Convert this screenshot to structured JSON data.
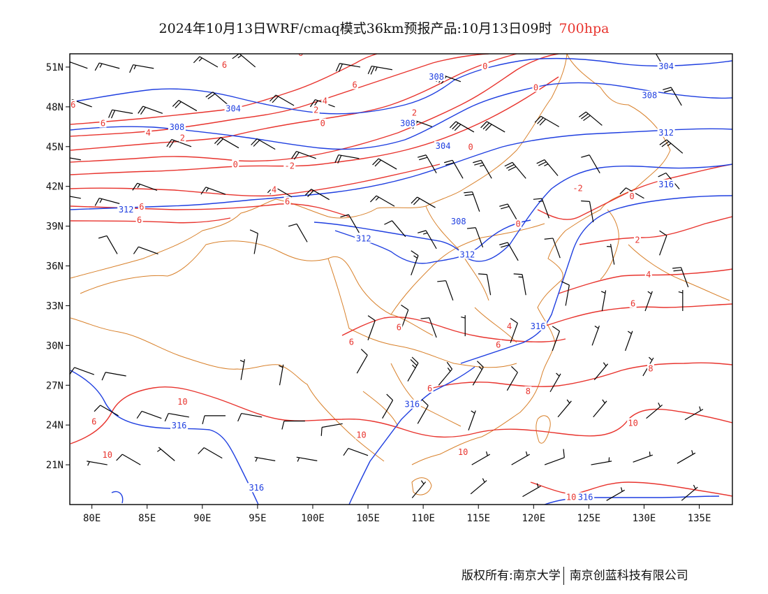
{
  "header": {
    "title": "2024年10月13日WRF/cmaq模式36km预报产品:10月13日09时",
    "level": "700hpa"
  },
  "footer": {
    "copyright": "版权所有:南京大学",
    "company": "南京创蓝科技有限公司"
  },
  "map": {
    "lon_range": [
      78,
      138
    ],
    "lat_range": [
      18,
      52
    ],
    "x_ticks": [
      80,
      85,
      90,
      95,
      100,
      105,
      110,
      115,
      120,
      125,
      130,
      135
    ],
    "x_tick_labels": [
      "80E",
      "85E",
      "90E",
      "95E",
      "100E",
      "105E",
      "110E",
      "115E",
      "120E",
      "125E",
      "130E",
      "135E"
    ],
    "y_ticks": [
      51,
      48,
      45,
      42,
      39,
      36,
      33,
      30,
      27,
      24,
      21
    ],
    "y_tick_labels": [
      "51N",
      "48N",
      "45N",
      "42N",
      "39N",
      "36N",
      "33N",
      "30N",
      "27N",
      "24N",
      "21N"
    ],
    "colors": {
      "temperature": "#e8342e",
      "geopotential": "#1f3fe0",
      "boundary": "#d8802a",
      "wind": "#000000"
    },
    "geopotential_labels": [
      {
        "text": "304",
        "lon": 92.8,
        "lat": 47.8
      },
      {
        "text": "308",
        "lon": 87.7,
        "lat": 46.4
      },
      {
        "text": "312",
        "lon": 83.1,
        "lat": 40.2
      },
      {
        "text": "308",
        "lon": 111.2,
        "lat": 50.2
      },
      {
        "text": "308",
        "lon": 108.6,
        "lat": 46.7
      },
      {
        "text": "304",
        "lon": 111.8,
        "lat": 45.0
      },
      {
        "text": "304",
        "lon": 132.0,
        "lat": 51.0
      },
      {
        "text": "308",
        "lon": 130.5,
        "lat": 48.8
      },
      {
        "text": "312",
        "lon": 132.0,
        "lat": 46.0
      },
      {
        "text": "316",
        "lon": 132.0,
        "lat": 42.1
      },
      {
        "text": "308",
        "lon": 113.2,
        "lat": 39.3
      },
      {
        "text": "312",
        "lon": 104.6,
        "lat": 38.0
      },
      {
        "text": "312",
        "lon": 114.0,
        "lat": 36.8
      },
      {
        "text": "316",
        "lon": 120.4,
        "lat": 31.4
      },
      {
        "text": "316",
        "lon": 109.0,
        "lat": 25.5
      },
      {
        "text": "316",
        "lon": 87.9,
        "lat": 23.9
      },
      {
        "text": "316",
        "lon": 94.9,
        "lat": 19.2
      },
      {
        "text": "316",
        "lon": 124.7,
        "lat": 18.5
      }
    ],
    "temperature_labels": [
      {
        "text": "6",
        "lon": 78.3,
        "lat": 48.1
      },
      {
        "text": "6",
        "lon": 81.0,
        "lat": 46.7
      },
      {
        "text": "4",
        "lon": 85.1,
        "lat": 46.0
      },
      {
        "text": "2",
        "lon": 88.2,
        "lat": 45.6
      },
      {
        "text": "0",
        "lon": 93.0,
        "lat": 43.6
      },
      {
        "text": "-2",
        "lon": 97.9,
        "lat": 43.5
      },
      {
        "text": "6",
        "lon": 92.0,
        "lat": 51.1
      },
      {
        "text": "6",
        "lon": 98.9,
        "lat": 52.0
      },
      {
        "text": "6",
        "lon": 103.8,
        "lat": 49.6
      },
      {
        "text": "4",
        "lon": 101.1,
        "lat": 48.4
      },
      {
        "text": "2",
        "lon": 100.3,
        "lat": 47.7
      },
      {
        "text": "0",
        "lon": 100.9,
        "lat": 46.7
      },
      {
        "text": "2",
        "lon": 109.2,
        "lat": 47.5
      },
      {
        "text": "0",
        "lon": 115.6,
        "lat": 51.0
      },
      {
        "text": "0",
        "lon": 120.2,
        "lat": 49.4
      },
      {
        "text": "0",
        "lon": 114.3,
        "lat": 44.9
      },
      {
        "text": "-2",
        "lon": 124.0,
        "lat": 41.8
      },
      {
        "text": "0",
        "lon": 128.9,
        "lat": 41.2
      },
      {
        "text": "0",
        "lon": 118.6,
        "lat": 39.1
      },
      {
        "text": "2",
        "lon": 129.4,
        "lat": 37.9
      },
      {
        "text": "4",
        "lon": 130.4,
        "lat": 35.3
      },
      {
        "text": "6",
        "lon": 129.0,
        "lat": 33.1
      },
      {
        "text": "4",
        "lon": 96.5,
        "lat": 41.7
      },
      {
        "text": "6",
        "lon": 84.5,
        "lat": 40.4
      },
      {
        "text": "6",
        "lon": 84.3,
        "lat": 39.4
      },
      {
        "text": "6",
        "lon": 97.7,
        "lat": 40.8
      },
      {
        "text": "6",
        "lon": 107.8,
        "lat": 31.3
      },
      {
        "text": "4",
        "lon": 117.8,
        "lat": 31.4
      },
      {
        "text": "6",
        "lon": 116.8,
        "lat": 30.0
      },
      {
        "text": "6",
        "lon": 103.5,
        "lat": 30.2
      },
      {
        "text": "6",
        "lon": 110.6,
        "lat": 26.7
      },
      {
        "text": "8",
        "lon": 119.5,
        "lat": 26.5
      },
      {
        "text": "8",
        "lon": 130.6,
        "lat": 28.2
      },
      {
        "text": "10",
        "lon": 129.0,
        "lat": 24.1
      },
      {
        "text": "10",
        "lon": 113.6,
        "lat": 21.9
      },
      {
        "text": "10",
        "lon": 88.2,
        "lat": 25.7
      },
      {
        "text": "10",
        "lon": 104.4,
        "lat": 23.2
      },
      {
        "text": "6",
        "lon": 80.2,
        "lat": 24.2
      },
      {
        "text": "10",
        "lon": 81.4,
        "lat": 21.7
      },
      {
        "text": "10",
        "lon": 123.4,
        "lat": 18.5
      }
    ],
    "wind_barbs": [
      {
        "lon": 79.6,
        "lat": 50.9,
        "dir": 290,
        "speed": 15
      },
      {
        "lon": 82.5,
        "lat": 50.9,
        "dir": 285,
        "speed": 15
      },
      {
        "lon": 85.6,
        "lat": 50.9,
        "dir": 280,
        "speed": 15
      },
      {
        "lon": 91.4,
        "lat": 51.0,
        "dir": 300,
        "speed": 15
      },
      {
        "lon": 94.8,
        "lat": 51.0,
        "dir": 310,
        "speed": 15
      },
      {
        "lon": 104.3,
        "lat": 51.0,
        "dir": 280,
        "speed": 20
      },
      {
        "lon": 107.2,
        "lat": 50.8,
        "dir": 280,
        "speed": 25
      },
      {
        "lon": 113.4,
        "lat": 49.9,
        "dir": 290,
        "speed": 30
      },
      {
        "lon": 131.5,
        "lat": 51.4,
        "dir": 330,
        "speed": 30
      },
      {
        "lon": 80.0,
        "lat": 48.0,
        "dir": 290,
        "speed": 20
      },
      {
        "lon": 83.7,
        "lat": 47.5,
        "dir": 280,
        "speed": 20
      },
      {
        "lon": 86.4,
        "lat": 47.5,
        "dir": 290,
        "speed": 20
      },
      {
        "lon": 89.5,
        "lat": 47.7,
        "dir": 300,
        "speed": 20
      },
      {
        "lon": 92.4,
        "lat": 48.1,
        "dir": 310,
        "speed": 20
      },
      {
        "lon": 98.3,
        "lat": 48.1,
        "dir": 300,
        "speed": 20
      },
      {
        "lon": 102.0,
        "lat": 48.0,
        "dir": 290,
        "speed": 20
      },
      {
        "lon": 110.8,
        "lat": 46.5,
        "dir": 290,
        "speed": 30
      },
      {
        "lon": 114.6,
        "lat": 46.1,
        "dir": 300,
        "speed": 30
      },
      {
        "lon": 117.4,
        "lat": 46.1,
        "dir": 300,
        "speed": 30
      },
      {
        "lon": 122.3,
        "lat": 46.5,
        "dir": 300,
        "speed": 30
      },
      {
        "lon": 126.2,
        "lat": 46.6,
        "dir": 310,
        "speed": 30
      },
      {
        "lon": 133.4,
        "lat": 48.1,
        "dir": 330,
        "speed": 20
      },
      {
        "lon": 79.0,
        "lat": 44.0,
        "dir": 280,
        "speed": 20
      },
      {
        "lon": 89.0,
        "lat": 45.0,
        "dir": 290,
        "speed": 20
      },
      {
        "lon": 93.3,
        "lat": 44.9,
        "dir": 300,
        "speed": 20
      },
      {
        "lon": 96.6,
        "lat": 44.8,
        "dir": 300,
        "speed": 20
      },
      {
        "lon": 100.3,
        "lat": 44.1,
        "dir": 290,
        "speed": 20
      },
      {
        "lon": 104.2,
        "lat": 44.1,
        "dir": 280,
        "speed": 20
      },
      {
        "lon": 107.6,
        "lat": 43.3,
        "dir": 300,
        "speed": 20
      },
      {
        "lon": 111.2,
        "lat": 43.0,
        "dir": 330,
        "speed": 20
      },
      {
        "lon": 113.6,
        "lat": 42.6,
        "dir": 330,
        "speed": 20
      },
      {
        "lon": 116.2,
        "lat": 42.6,
        "dir": 330,
        "speed": 25
      },
      {
        "lon": 119.3,
        "lat": 42.6,
        "dir": 320,
        "speed": 30
      },
      {
        "lon": 122.2,
        "lat": 42.8,
        "dir": 320,
        "speed": 25
      },
      {
        "lon": 126.0,
        "lat": 43.0,
        "dir": 330,
        "speed": 10
      },
      {
        "lon": 133.5,
        "lat": 44.5,
        "dir": 310,
        "speed": 25
      },
      {
        "lon": 79.0,
        "lat": 41.1,
        "dir": 280,
        "speed": 15
      },
      {
        "lon": 82.5,
        "lat": 40.7,
        "dir": 285,
        "speed": 15
      },
      {
        "lon": 85.9,
        "lat": 41.7,
        "dir": 290,
        "speed": 15
      },
      {
        "lon": 92.1,
        "lat": 41.4,
        "dir": 290,
        "speed": 15
      },
      {
        "lon": 98.1,
        "lat": 41.2,
        "dir": 300,
        "speed": 20
      },
      {
        "lon": 101.5,
        "lat": 41.0,
        "dir": 300,
        "speed": 20
      },
      {
        "lon": 107.4,
        "lat": 40.5,
        "dir": 300,
        "speed": 15
      },
      {
        "lon": 111.1,
        "lat": 40.4,
        "dir": 300,
        "speed": 20
      },
      {
        "lon": 115.1,
        "lat": 40.1,
        "dir": 340,
        "speed": 20
      },
      {
        "lon": 118.6,
        "lat": 39.3,
        "dir": 330,
        "speed": 20
      },
      {
        "lon": 121.4,
        "lat": 39.6,
        "dir": 340,
        "speed": 15
      },
      {
        "lon": 125.4,
        "lat": 39.3,
        "dir": 350,
        "speed": 10
      },
      {
        "lon": 130.0,
        "lat": 41.1,
        "dir": 300,
        "speed": 10
      },
      {
        "lon": 133.2,
        "lat": 41.8,
        "dir": 320,
        "speed": 10
      },
      {
        "lon": 82.3,
        "lat": 36.9,
        "dir": 330,
        "speed": 10
      },
      {
        "lon": 86.0,
        "lat": 36.9,
        "dir": 290,
        "speed": 10
      },
      {
        "lon": 94.7,
        "lat": 36.9,
        "dir": 10,
        "speed": 10
      },
      {
        "lon": 99.5,
        "lat": 37.8,
        "dir": 330,
        "speed": 10
      },
      {
        "lon": 104.2,
        "lat": 38.5,
        "dir": 330,
        "speed": 10
      },
      {
        "lon": 108.4,
        "lat": 38.2,
        "dir": 320,
        "speed": 10
      },
      {
        "lon": 111.2,
        "lat": 37.3,
        "dir": 330,
        "speed": 15
      },
      {
        "lon": 115.4,
        "lat": 37.4,
        "dir": 340,
        "speed": 10
      },
      {
        "lon": 118.6,
        "lat": 36.4,
        "dir": 330,
        "speed": 20
      },
      {
        "lon": 122.4,
        "lat": 36.6,
        "dir": 340,
        "speed": 10
      },
      {
        "lon": 127.3,
        "lat": 36.1,
        "dir": 350,
        "speed": 5
      },
      {
        "lon": 131.4,
        "lat": 36.8,
        "dir": 20,
        "speed": 10
      },
      {
        "lon": 134.0,
        "lat": 34.4,
        "dir": 340,
        "speed": 20
      },
      {
        "lon": 108.9,
        "lat": 35.3,
        "dir": 20,
        "speed": 15
      },
      {
        "lon": 112.7,
        "lat": 33.4,
        "dir": 340,
        "speed": 10
      },
      {
        "lon": 116.1,
        "lat": 33.8,
        "dir": 350,
        "speed": 10
      },
      {
        "lon": 119.3,
        "lat": 33.8,
        "dir": 350,
        "speed": 15
      },
      {
        "lon": 122.9,
        "lat": 33.0,
        "dir": 10,
        "speed": 10
      },
      {
        "lon": 126.2,
        "lat": 32.6,
        "dir": 10,
        "speed": 5
      },
      {
        "lon": 130.1,
        "lat": 32.6,
        "dir": 20,
        "speed": 5
      },
      {
        "lon": 133.5,
        "lat": 32.6,
        "dir": 0,
        "speed": 5
      },
      {
        "lon": 105.0,
        "lat": 30.4,
        "dir": 20,
        "speed": 10
      },
      {
        "lon": 108.0,
        "lat": 31.2,
        "dir": 20,
        "speed": 10
      },
      {
        "lon": 111.2,
        "lat": 30.6,
        "dir": 340,
        "speed": 10
      },
      {
        "lon": 113.8,
        "lat": 30.7,
        "dir": 0,
        "speed": 5
      },
      {
        "lon": 117.9,
        "lat": 30.2,
        "dir": 20,
        "speed": 10
      },
      {
        "lon": 121.7,
        "lat": 29.6,
        "dir": 20,
        "speed": 10
      },
      {
        "lon": 125.3,
        "lat": 30.0,
        "dir": 20,
        "speed": 5
      },
      {
        "lon": 128.3,
        "lat": 29.6,
        "dir": 20,
        "speed": 5
      },
      {
        "lon": 80.2,
        "lat": 27.8,
        "dir": 290,
        "speed": 10
      },
      {
        "lon": 83.1,
        "lat": 27.7,
        "dir": 280,
        "speed": 10
      },
      {
        "lon": 93.5,
        "lat": 27.4,
        "dir": 10,
        "speed": 5
      },
      {
        "lon": 97.0,
        "lat": 27.0,
        "dir": 10,
        "speed": 5
      },
      {
        "lon": 104.0,
        "lat": 27.9,
        "dir": 30,
        "speed": 10
      },
      {
        "lon": 108.6,
        "lat": 27.3,
        "dir": 30,
        "speed": 25
      },
      {
        "lon": 111.4,
        "lat": 27.0,
        "dir": 40,
        "speed": 15
      },
      {
        "lon": 114.5,
        "lat": 27.0,
        "dir": 30,
        "speed": 15
      },
      {
        "lon": 117.6,
        "lat": 26.6,
        "dir": 30,
        "speed": 10
      },
      {
        "lon": 121.5,
        "lat": 26.5,
        "dir": 30,
        "speed": 5
      },
      {
        "lon": 125.5,
        "lat": 27.4,
        "dir": 40,
        "speed": 5
      },
      {
        "lon": 129.9,
        "lat": 27.7,
        "dir": 30,
        "speed": 5
      },
      {
        "lon": 82.4,
        "lat": 24.7,
        "dir": 300,
        "speed": 10
      },
      {
        "lon": 86.3,
        "lat": 24.5,
        "dir": 290,
        "speed": 10
      },
      {
        "lon": 88.8,
        "lat": 24.6,
        "dir": 280,
        "speed": 10
      },
      {
        "lon": 92.1,
        "lat": 24.7,
        "dir": 270,
        "speed": 10
      },
      {
        "lon": 95.4,
        "lat": 24.6,
        "dir": 280,
        "speed": 10
      },
      {
        "lon": 99.3,
        "lat": 24.3,
        "dir": 270,
        "speed": 10
      },
      {
        "lon": 102.7,
        "lat": 24.1,
        "dir": 260,
        "speed": 10
      },
      {
        "lon": 106.3,
        "lat": 24.5,
        "dir": 30,
        "speed": 10
      },
      {
        "lon": 109.5,
        "lat": 24.1,
        "dir": 30,
        "speed": 10
      },
      {
        "lon": 114.1,
        "lat": 23.6,
        "dir": 20,
        "speed": 5
      },
      {
        "lon": 122.2,
        "lat": 24.6,
        "dir": 40,
        "speed": 5
      },
      {
        "lon": 125.4,
        "lat": 24.6,
        "dir": 40,
        "speed": 5
      },
      {
        "lon": 130.2,
        "lat": 24.5,
        "dir": 50,
        "speed": 5
      },
      {
        "lon": 133.7,
        "lat": 24.4,
        "dir": 60,
        "speed": 5
      },
      {
        "lon": 81.4,
        "lat": 21.0,
        "dir": 280,
        "speed": 5
      },
      {
        "lon": 84.4,
        "lat": 21.0,
        "dir": 300,
        "speed": 10
      },
      {
        "lon": 87.5,
        "lat": 21.3,
        "dir": 310,
        "speed": 5
      },
      {
        "lon": 91.8,
        "lat": 21.5,
        "dir": 300,
        "speed": 10
      },
      {
        "lon": 96.6,
        "lat": 21.3,
        "dir": 280,
        "speed": 5
      },
      {
        "lon": 100.4,
        "lat": 21.3,
        "dir": 280,
        "speed": 5
      },
      {
        "lon": 105.0,
        "lat": 21.7,
        "dir": 290,
        "speed": 10
      },
      {
        "lon": 114.4,
        "lat": 21.0,
        "dir": 60,
        "speed": 5
      },
      {
        "lon": 118.0,
        "lat": 21.0,
        "dir": 60,
        "speed": 5
      },
      {
        "lon": 121.0,
        "lat": 21.0,
        "dir": 70,
        "speed": 10
      },
      {
        "lon": 125.2,
        "lat": 21.0,
        "dir": 80,
        "speed": 5
      },
      {
        "lon": 129.0,
        "lat": 21.2,
        "dir": 70,
        "speed": 5
      },
      {
        "lon": 133.0,
        "lat": 21.1,
        "dir": 60,
        "speed": 5
      },
      {
        "lon": 109.0,
        "lat": 18.5,
        "dir": 40,
        "speed": 5
      },
      {
        "lon": 114.3,
        "lat": 18.8,
        "dir": 50,
        "speed": 5
      },
      {
        "lon": 119.0,
        "lat": 18.6,
        "dir": 60,
        "speed": 5
      },
      {
        "lon": 126.6,
        "lat": 18.3,
        "dir": 60,
        "speed": 5
      },
      {
        "lon": 133.4,
        "lat": 18.3,
        "dir": 50,
        "speed": 5
      }
    ]
  }
}
